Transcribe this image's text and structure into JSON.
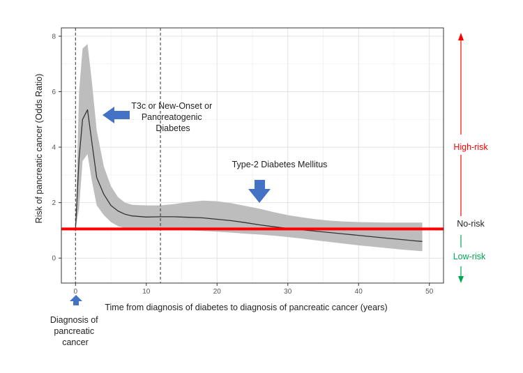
{
  "chart_data": {
    "type": "line",
    "xlabel": "Time from diagnosis of diabetes to diagnosis of pancreatic cancer (years)",
    "ylabel": "Risk of pancreatic cancer (Odds Ratio)",
    "xlim": [
      -2,
      52
    ],
    "ylim": [
      -0.9,
      8.3
    ],
    "x_ticks": [
      0,
      10,
      20,
      30,
      40,
      50
    ],
    "y_ticks": [
      0,
      2,
      4,
      6,
      8
    ],
    "grid": true,
    "reference_line": {
      "y": 1.05,
      "color": "#ff0000"
    },
    "vertical_markers": [
      0,
      12
    ],
    "series": [
      {
        "type": "line-with-ci",
        "color": "#333333",
        "ci_color": "#bdbdbd",
        "x": [
          0,
          0.5,
          1,
          1.7,
          2.3,
          3,
          4,
          5,
          6,
          7,
          8,
          10,
          12,
          14,
          16,
          18,
          20,
          22,
          24,
          26,
          28,
          30,
          32,
          34,
          36,
          38,
          40,
          42,
          44,
          46,
          48,
          49
        ],
        "y": [
          1.05,
          3.6,
          5.0,
          5.35,
          4.2,
          2.9,
          2.3,
          1.9,
          1.7,
          1.58,
          1.52,
          1.48,
          1.49,
          1.49,
          1.47,
          1.45,
          1.4,
          1.35,
          1.28,
          1.2,
          1.13,
          1.07,
          1.02,
          0.97,
          0.92,
          0.87,
          0.82,
          0.77,
          0.72,
          0.67,
          0.62,
          0.6
        ],
        "upper": [
          1.05,
          6.0,
          7.55,
          7.72,
          6.4,
          4.6,
          3.3,
          2.6,
          2.2,
          2.0,
          1.92,
          1.9,
          1.9,
          1.95,
          2.02,
          2.07,
          2.05,
          1.98,
          1.88,
          1.78,
          1.66,
          1.55,
          1.47,
          1.4,
          1.35,
          1.32,
          1.3,
          1.29,
          1.28,
          1.28,
          1.28,
          1.28
        ],
        "lower": [
          1.05,
          1.8,
          3.5,
          3.75,
          2.8,
          1.9,
          1.55,
          1.3,
          1.15,
          1.08,
          1.04,
          1.02,
          1.02,
          1.02,
          1.0,
          0.98,
          0.95,
          0.92,
          0.88,
          0.85,
          0.81,
          0.76,
          0.7,
          0.64,
          0.58,
          0.52,
          0.46,
          0.41,
          0.36,
          0.31,
          0.27,
          0.25
        ]
      }
    ],
    "annotations": {
      "t3c": [
        "T3c or New-Onset or",
        "Pancreatogenic",
        "Diabetes"
      ],
      "type2": "Type-2 Diabetes Mellitus",
      "diagnosis": [
        "Diagnosis of",
        "pancreatic",
        "cancer"
      ]
    },
    "risk_scale": {
      "high": "High-risk",
      "none": "No-risk",
      "low": "Low-risk",
      "high_color": "#ff0000",
      "low_color": "#00a651",
      "none_color": "#222222"
    },
    "arrow_color": "#4472c4"
  }
}
